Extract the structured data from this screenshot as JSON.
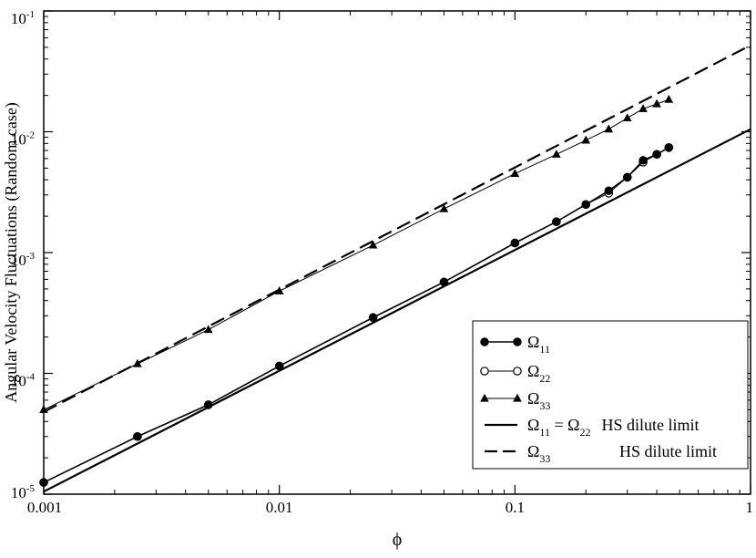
{
  "chart_data": {
    "type": "line",
    "xscale": "log",
    "yscale": "log",
    "xlim": [
      0.001,
      1
    ],
    "ylim": [
      1e-05,
      0.1
    ],
    "xlabel": "ϕ",
    "ylabel": "Angular Velocity Fluctuations (Random case)",
    "xticks": [
      {
        "value": 0.001,
        "label": "0.001"
      },
      {
        "value": 0.01,
        "label": "0.01"
      },
      {
        "value": 0.1,
        "label": "0.1"
      },
      {
        "value": 1,
        "label": "1"
      }
    ],
    "yticks": [
      {
        "value": 1e-05,
        "base": "10",
        "exp": "-5"
      },
      {
        "value": 0.0001,
        "base": "10",
        "exp": "-4"
      },
      {
        "value": 0.001,
        "base": "10",
        "exp": "-3"
      },
      {
        "value": 0.01,
        "base": "10",
        "exp": "-2"
      },
      {
        "value": 0.1,
        "base": "10",
        "exp": "-1"
      }
    ],
    "grid": false,
    "legend_position": "bottom-right",
    "series": [
      {
        "name": "Ω11",
        "legend": {
          "main": "Ω",
          "sub": "11",
          "extra": ""
        },
        "marker": "filled-circle",
        "line": "solid",
        "stroke_width": 1.6,
        "x": [
          0.001,
          0.0025,
          0.005,
          0.01,
          0.025,
          0.05,
          0.1,
          0.15,
          0.2,
          0.25,
          0.3,
          0.35,
          0.4,
          0.45
        ],
        "y": [
          1.25e-05,
          3e-05,
          5.5e-05,
          0.000115,
          0.00029,
          0.00057,
          0.0012,
          0.0018,
          0.0025,
          0.00325,
          0.0042,
          0.0058,
          0.0065,
          0.0074
        ]
      },
      {
        "name": "Ω22",
        "legend": {
          "main": "Ω",
          "sub": "22",
          "extra": ""
        },
        "marker": "open-circle",
        "line": "solid",
        "stroke_width": 1.0,
        "x": [
          0.001,
          0.0025,
          0.005,
          0.01,
          0.025,
          0.05,
          0.1,
          0.15,
          0.2,
          0.25,
          0.3,
          0.35,
          0.4,
          0.45
        ],
        "y": [
          1.25e-05,
          3e-05,
          5.5e-05,
          0.000115,
          0.00029,
          0.00057,
          0.0012,
          0.0018,
          0.0025,
          0.0031,
          0.0042,
          0.0056,
          0.0065,
          0.0074
        ]
      },
      {
        "name": "Ω33",
        "legend": {
          "main": "Ω",
          "sub": "33",
          "extra": ""
        },
        "marker": "filled-triangle",
        "line": "solid",
        "stroke_width": 1.0,
        "x": [
          0.001,
          0.0025,
          0.005,
          0.01,
          0.025,
          0.05,
          0.1,
          0.15,
          0.2,
          0.25,
          0.3,
          0.35,
          0.4,
          0.45
        ],
        "y": [
          5e-05,
          0.00012,
          0.00023,
          0.00048,
          0.00115,
          0.0023,
          0.0045,
          0.0065,
          0.0085,
          0.0105,
          0.013,
          0.0155,
          0.017,
          0.0185
        ]
      },
      {
        "name": "Ω11 = Ω22 HS dilute limit",
        "legend": {
          "main": "Ω",
          "sub": "11",
          "extra": " = ",
          "main2": "Ω",
          "sub2": "22",
          "tail": "HS dilute limit"
        },
        "marker": "none",
        "line": "solid",
        "stroke_width": 2.2,
        "x": [
          0.001,
          1
        ],
        "y": [
          1.05e-05,
          0.0105
        ]
      },
      {
        "name": "Ω33 HS dilute limit",
        "legend": {
          "main": "Ω",
          "sub": "33",
          "extra": "",
          "tail": "HS dilute limit"
        },
        "marker": "none",
        "line": "dashed",
        "stroke_width": 2.2,
        "x": [
          0.001,
          1
        ],
        "y": [
          4.8e-05,
          0.052
        ]
      }
    ]
  }
}
